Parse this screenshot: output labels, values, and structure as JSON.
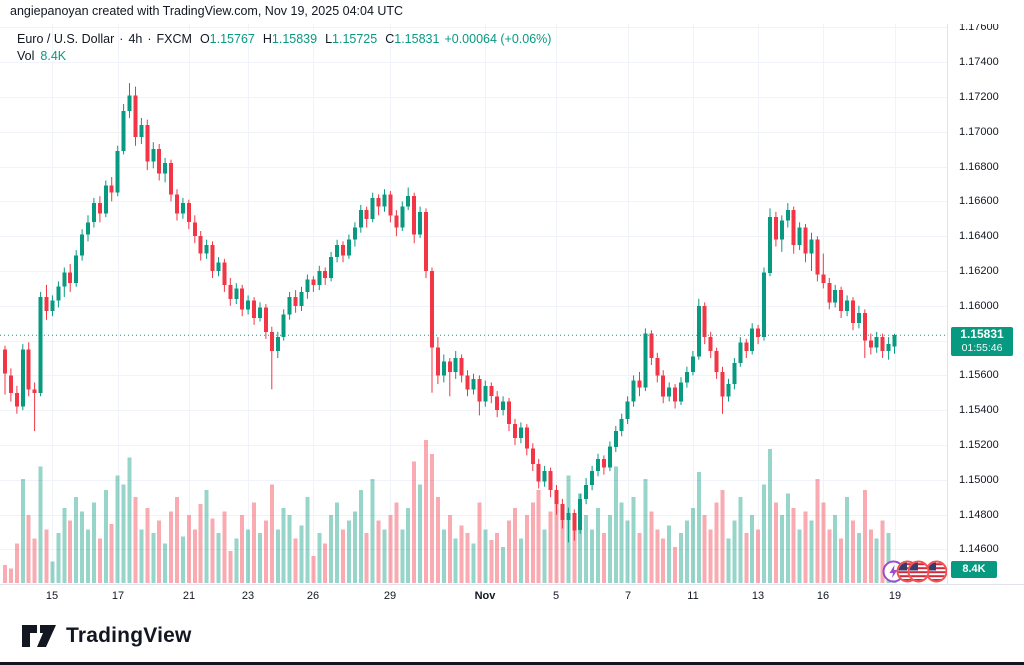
{
  "attribution": "angiepanoyan created with TradingView.com, Nov 19, 2025 04:04 UTC",
  "legend": {
    "symbol": "Euro / U.S. Dollar",
    "dot1": "·",
    "interval": "4h",
    "dot2": "·",
    "exchange": "FXCM",
    "o_label": "O",
    "o_value": "1.15767",
    "h_label": "H",
    "h_value": "1.15839",
    "l_label": "L",
    "l_value": "1.15725",
    "c_label": "C",
    "c_value": "1.15831",
    "change": "+0.00064 (+0.06%)",
    "vol_label": "Vol",
    "vol_value": "8.4K"
  },
  "price_scale": {
    "ticks": [
      "1.17600",
      "1.17400",
      "1.17200",
      "1.17000",
      "1.16800",
      "1.16600",
      "1.16400",
      "1.16200",
      "1.16000",
      "1.15800",
      "1.15600",
      "1.15400",
      "1.15200",
      "1.15000",
      "1.14800",
      "1.14600"
    ],
    "last_price": "1.15831",
    "countdown": "01:55:46",
    "volume_value": "8.4K"
  },
  "time_scale": {
    "ticks": [
      {
        "index": 8,
        "label": "15"
      },
      {
        "index": 19,
        "label": "17"
      },
      {
        "index": 31,
        "label": "21"
      },
      {
        "index": 41,
        "label": "23"
      },
      {
        "index": 52,
        "label": "26"
      },
      {
        "index": 65,
        "label": "29"
      },
      {
        "index": 81,
        "label": "Nov",
        "bold": true
      },
      {
        "index": 93,
        "label": "5"
      },
      {
        "index": 105,
        "label": "7"
      },
      {
        "index": 116,
        "label": "11"
      },
      {
        "index": 127,
        "label": "13"
      },
      {
        "index": 138,
        "label": "16"
      },
      {
        "index": 150,
        "label": "19"
      }
    ]
  },
  "events": [
    {
      "kind": "economic-event",
      "ring": "#9c4dcc",
      "flag": false
    },
    {
      "kind": "us-economic-event",
      "ring": "#ef5350",
      "flag": true
    },
    {
      "kind": "us-economic-event",
      "ring": "#ef5350",
      "flag": true
    },
    {
      "kind": "us-economic-event",
      "ring": "#ef5350",
      "flag": true
    }
  ],
  "footer": {
    "brand": "TradingView"
  },
  "colors": {
    "up": "#089981",
    "down": "#f23645",
    "vol_up": "rgba(8,153,129,0.42)",
    "vol_down": "rgba(242,54,69,0.42)",
    "grid": "#f0f3fa",
    "text": "#131722",
    "badge": "#089981",
    "border": "#e0e3eb",
    "price_line": "#089981"
  },
  "chart_data": {
    "type": "candlestick",
    "title": "Euro / U.S. Dollar",
    "symbol": "EURUSD",
    "interval": "4h",
    "exchange": "FXCM",
    "legend_last_bar": {
      "open": 1.15767,
      "high": 1.15839,
      "low": 1.15725,
      "close": 1.15831,
      "change": 0.00064,
      "change_pct": 0.06,
      "volume_k": 8.4
    },
    "y_axis": {
      "min": 1.146,
      "max": 1.176,
      "step": 0.002
    },
    "x_axis_labels": [
      "15",
      "17",
      "21",
      "23",
      "26",
      "29",
      "Nov",
      "5",
      "7",
      "11",
      "13",
      "16",
      "19"
    ],
    "last_price": 1.15831,
    "candles": [
      [
        1.1575,
        1.1577,
        1.1549,
        1.1561
      ],
      [
        1.156,
        1.1564,
        1.1545,
        1.155
      ],
      [
        1.155,
        1.1554,
        1.1538,
        1.1542
      ],
      [
        1.1542,
        1.1578,
        1.154,
        1.1575
      ],
      [
        1.1575,
        1.1579,
        1.1548,
        1.1552
      ],
      [
        1.1552,
        1.1556,
        1.1528,
        1.155
      ],
      [
        1.155,
        1.1608,
        1.1548,
        1.1605
      ],
      [
        1.1605,
        1.1612,
        1.1592,
        1.1597
      ],
      [
        1.1597,
        1.1606,
        1.1594,
        1.1603
      ],
      [
        1.1603,
        1.1614,
        1.1599,
        1.1611
      ],
      [
        1.1611,
        1.1622,
        1.1605,
        1.1619
      ],
      [
        1.1619,
        1.1624,
        1.1608,
        1.1613
      ],
      [
        1.1613,
        1.1632,
        1.1611,
        1.1629
      ],
      [
        1.1629,
        1.1644,
        1.1626,
        1.1641
      ],
      [
        1.1641,
        1.1652,
        1.1637,
        1.1648
      ],
      [
        1.1648,
        1.1662,
        1.1645,
        1.1659
      ],
      [
        1.1659,
        1.1663,
        1.1648,
        1.1653
      ],
      [
        1.1653,
        1.1672,
        1.1651,
        1.1669
      ],
      [
        1.1669,
        1.1674,
        1.166,
        1.1665
      ],
      [
        1.1665,
        1.1692,
        1.1663,
        1.1689
      ],
      [
        1.1689,
        1.1716,
        1.1687,
        1.1712
      ],
      [
        1.1712,
        1.1728,
        1.1708,
        1.1721
      ],
      [
        1.1721,
        1.1726,
        1.1692,
        1.1697
      ],
      [
        1.1697,
        1.1708,
        1.1693,
        1.1704
      ],
      [
        1.1704,
        1.1707,
        1.1678,
        1.1683
      ],
      [
        1.1683,
        1.1694,
        1.1679,
        1.169
      ],
      [
        1.169,
        1.1693,
        1.1672,
        1.1676
      ],
      [
        1.1676,
        1.1685,
        1.1671,
        1.1682
      ],
      [
        1.1682,
        1.1684,
        1.166,
        1.1664
      ],
      [
        1.1664,
        1.1667,
        1.1649,
        1.1653
      ],
      [
        1.1653,
        1.1662,
        1.165,
        1.1659
      ],
      [
        1.1659,
        1.1661,
        1.1644,
        1.1648
      ],
      [
        1.1648,
        1.1652,
        1.1636,
        1.164
      ],
      [
        1.164,
        1.1643,
        1.1626,
        1.163
      ],
      [
        1.163,
        1.1638,
        1.1627,
        1.1635
      ],
      [
        1.1635,
        1.1637,
        1.1616,
        1.162
      ],
      [
        1.162,
        1.1628,
        1.1617,
        1.1625
      ],
      [
        1.1625,
        1.1627,
        1.1608,
        1.1612
      ],
      [
        1.1612,
        1.1616,
        1.16,
        1.1604
      ],
      [
        1.1604,
        1.1613,
        1.1601,
        1.161
      ],
      [
        1.161,
        1.1612,
        1.1594,
        1.1598
      ],
      [
        1.1598,
        1.1606,
        1.1595,
        1.1603
      ],
      [
        1.1603,
        1.1605,
        1.1589,
        1.1593
      ],
      [
        1.1593,
        1.1602,
        1.1591,
        1.1599
      ],
      [
        1.1599,
        1.1601,
        1.1581,
        1.1585
      ],
      [
        1.1585,
        1.1588,
        1.1552,
        1.1574
      ],
      [
        1.1574,
        1.1585,
        1.157,
        1.1582
      ],
      [
        1.1582,
        1.1598,
        1.158,
        1.1595
      ],
      [
        1.1595,
        1.1608,
        1.1592,
        1.1605
      ],
      [
        1.1605,
        1.1609,
        1.1596,
        1.16
      ],
      [
        1.16,
        1.1611,
        1.1597,
        1.1608
      ],
      [
        1.1608,
        1.1618,
        1.1604,
        1.1615
      ],
      [
        1.1615,
        1.1617,
        1.1608,
        1.1612
      ],
      [
        1.1612,
        1.1623,
        1.1609,
        1.162
      ],
      [
        1.162,
        1.1622,
        1.1612,
        1.1616
      ],
      [
        1.1616,
        1.1631,
        1.1614,
        1.1628
      ],
      [
        1.1628,
        1.1638,
        1.1625,
        1.1635
      ],
      [
        1.1635,
        1.1637,
        1.1625,
        1.1629
      ],
      [
        1.1629,
        1.1641,
        1.1627,
        1.1638
      ],
      [
        1.1638,
        1.1648,
        1.1634,
        1.1645
      ],
      [
        1.1645,
        1.1658,
        1.1642,
        1.1655
      ],
      [
        1.1655,
        1.1657,
        1.1645,
        1.165
      ],
      [
        1.165,
        1.1665,
        1.1648,
        1.1662
      ],
      [
        1.1662,
        1.1664,
        1.1652,
        1.1657
      ],
      [
        1.1657,
        1.1667,
        1.1654,
        1.1664
      ],
      [
        1.1664,
        1.1666,
        1.1648,
        1.1652
      ],
      [
        1.1652,
        1.1655,
        1.164,
        1.1645
      ],
      [
        1.1645,
        1.166,
        1.1643,
        1.1657
      ],
      [
        1.1657,
        1.1668,
        1.1655,
        1.1663
      ],
      [
        1.1663,
        1.1665,
        1.1636,
        1.1641
      ],
      [
        1.1641,
        1.1657,
        1.1639,
        1.1654
      ],
      [
        1.1654,
        1.1656,
        1.1616,
        1.162
      ],
      [
        1.162,
        1.1622,
        1.155,
        1.1576
      ],
      [
        1.1576,
        1.1582,
        1.1555,
        1.156
      ],
      [
        1.156,
        1.1572,
        1.1556,
        1.1568
      ],
      [
        1.1568,
        1.157,
        1.1548,
        1.1562
      ],
      [
        1.1562,
        1.1574,
        1.1558,
        1.157
      ],
      [
        1.157,
        1.1572,
        1.1556,
        1.156
      ],
      [
        1.156,
        1.1563,
        1.1548,
        1.1552
      ],
      [
        1.1552,
        1.1561,
        1.1549,
        1.1558
      ],
      [
        1.1558,
        1.156,
        1.1537,
        1.1545
      ],
      [
        1.1545,
        1.1557,
        1.1542,
        1.1554
      ],
      [
        1.1554,
        1.1556,
        1.1544,
        1.1548
      ],
      [
        1.1548,
        1.1551,
        1.1536,
        1.154
      ],
      [
        1.154,
        1.1548,
        1.1537,
        1.1545
      ],
      [
        1.1545,
        1.1547,
        1.1528,
        1.1532
      ],
      [
        1.1532,
        1.1535,
        1.152,
        1.1524
      ],
      [
        1.1524,
        1.1533,
        1.1521,
        1.153
      ],
      [
        1.153,
        1.1532,
        1.1514,
        1.1518
      ],
      [
        1.1518,
        1.1521,
        1.1505,
        1.1509
      ],
      [
        1.1509,
        1.1512,
        1.1495,
        1.1499
      ],
      [
        1.1499,
        1.1508,
        1.1496,
        1.1505
      ],
      [
        1.1505,
        1.1507,
        1.149,
        1.1494
      ],
      [
        1.1494,
        1.1497,
        1.148,
        1.1486
      ],
      [
        1.1486,
        1.1489,
        1.1472,
        1.1477
      ],
      [
        1.1477,
        1.1484,
        1.1464,
        1.1481
      ],
      [
        1.1481,
        1.1483,
        1.1465,
        1.1471
      ],
      [
        1.1471,
        1.1492,
        1.1469,
        1.1489
      ],
      [
        1.1489,
        1.1501,
        1.1486,
        1.1497
      ],
      [
        1.1497,
        1.1508,
        1.1494,
        1.1505
      ],
      [
        1.1505,
        1.1515,
        1.1502,
        1.1512
      ],
      [
        1.1512,
        1.1514,
        1.1503,
        1.1507
      ],
      [
        1.1507,
        1.1522,
        1.1505,
        1.1519
      ],
      [
        1.1519,
        1.1531,
        1.1516,
        1.1528
      ],
      [
        1.1528,
        1.1538,
        1.1525,
        1.1535
      ],
      [
        1.1535,
        1.1548,
        1.1532,
        1.1545
      ],
      [
        1.1545,
        1.156,
        1.1542,
        1.1557
      ],
      [
        1.1557,
        1.1562,
        1.1548,
        1.1553
      ],
      [
        1.1553,
        1.1587,
        1.1551,
        1.1584
      ],
      [
        1.1584,
        1.1586,
        1.1566,
        1.157
      ],
      [
        1.157,
        1.1573,
        1.1556,
        1.156
      ],
      [
        1.156,
        1.1563,
        1.1544,
        1.1548
      ],
      [
        1.1548,
        1.1556,
        1.1545,
        1.1553
      ],
      [
        1.1553,
        1.1555,
        1.1541,
        1.1545
      ],
      [
        1.1545,
        1.1559,
        1.1543,
        1.1556
      ],
      [
        1.1556,
        1.1565,
        1.1553,
        1.1562
      ],
      [
        1.1562,
        1.1574,
        1.156,
        1.1571
      ],
      [
        1.1571,
        1.1604,
        1.1569,
        1.16
      ],
      [
        1.16,
        1.1602,
        1.1578,
        1.1582
      ],
      [
        1.1582,
        1.1585,
        1.157,
        1.1574
      ],
      [
        1.1574,
        1.1576,
        1.1558,
        1.1562
      ],
      [
        1.1562,
        1.1565,
        1.1538,
        1.1548
      ],
      [
        1.1548,
        1.1558,
        1.1545,
        1.1555
      ],
      [
        1.1555,
        1.157,
        1.1552,
        1.1567
      ],
      [
        1.1567,
        1.1582,
        1.1565,
        1.1579
      ],
      [
        1.1579,
        1.1581,
        1.157,
        1.1574
      ],
      [
        1.1574,
        1.159,
        1.1572,
        1.1587
      ],
      [
        1.1587,
        1.1589,
        1.1578,
        1.1582
      ],
      [
        1.1582,
        1.1622,
        1.158,
        1.1619
      ],
      [
        1.1619,
        1.1656,
        1.1617,
        1.1651
      ],
      [
        1.1651,
        1.1654,
        1.1634,
        1.1638
      ],
      [
        1.1638,
        1.1652,
        1.1631,
        1.1649
      ],
      [
        1.1649,
        1.1659,
        1.1645,
        1.1655
      ],
      [
        1.1655,
        1.1657,
        1.163,
        1.1635
      ],
      [
        1.1635,
        1.1648,
        1.1632,
        1.1645
      ],
      [
        1.1645,
        1.1647,
        1.1625,
        1.163
      ],
      [
        1.163,
        1.1642,
        1.162,
        1.1638
      ],
      [
        1.1638,
        1.164,
        1.1614,
        1.1618
      ],
      [
        1.1618,
        1.163,
        1.161,
        1.1613
      ],
      [
        1.1613,
        1.1616,
        1.1598,
        1.1602
      ],
      [
        1.1602,
        1.1612,
        1.1599,
        1.1609
      ],
      [
        1.1609,
        1.1611,
        1.1593,
        1.1597
      ],
      [
        1.1597,
        1.1606,
        1.1594,
        1.1603
      ],
      [
        1.1603,
        1.1605,
        1.1586,
        1.159
      ],
      [
        1.159,
        1.16,
        1.1587,
        1.1596
      ],
      [
        1.1596,
        1.1598,
        1.157,
        1.158
      ],
      [
        1.158,
        1.1584,
        1.1572,
        1.1576
      ],
      [
        1.1576,
        1.1585,
        1.1573,
        1.1582
      ],
      [
        1.1582,
        1.1584,
        1.157,
        1.1574
      ],
      [
        1.1574,
        1.1582,
        1.1569,
        1.1578
      ],
      [
        1.15767,
        1.15839,
        1.15725,
        1.15831
      ]
    ],
    "volumes_k": [
      10,
      8,
      22,
      58,
      38,
      25,
      65,
      30,
      12,
      28,
      42,
      35,
      48,
      40,
      30,
      45,
      25,
      52,
      33,
      60,
      55,
      70,
      48,
      30,
      42,
      28,
      35,
      22,
      40,
      48,
      26,
      38,
      30,
      44,
      52,
      36,
      28,
      40,
      18,
      25,
      38,
      30,
      45,
      28,
      35,
      55,
      30,
      42,
      38,
      25,
      32,
      48,
      15,
      28,
      22,
      38,
      45,
      30,
      35,
      40,
      52,
      28,
      58,
      35,
      30,
      38,
      45,
      30,
      42,
      68,
      55,
      80,
      72,
      48,
      30,
      38,
      25,
      32,
      28,
      22,
      45,
      30,
      24,
      28,
      20,
      35,
      42,
      25,
      38,
      45,
      52,
      30,
      40,
      48,
      42,
      60,
      35,
      50,
      38,
      30,
      42,
      28,
      38,
      65,
      45,
      35,
      48,
      28,
      58,
      40,
      30,
      25,
      32,
      20,
      28,
      35,
      42,
      62,
      38,
      30,
      45,
      52,
      25,
      35,
      48,
      28,
      38,
      30,
      55,
      75,
      45,
      38,
      50,
      42,
      30,
      40,
      35,
      58,
      45,
      30,
      38,
      25,
      48,
      35,
      28,
      52,
      30,
      25,
      35,
      28,
      8.4
    ]
  }
}
